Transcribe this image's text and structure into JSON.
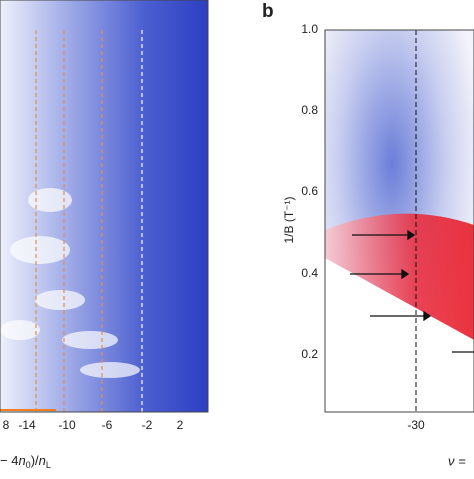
{
  "panel_a": {
    "xticks": [
      "8",
      "-14",
      "-10",
      "-6",
      "-2",
      "2"
    ],
    "xlabel": {
      "a": "− 4",
      "b": "n",
      "c": "0",
      "d": ")/",
      "e": "n",
      "f": "L"
    }
  },
  "panel_b": {
    "label": "b",
    "ylabel": "1/B (T⁻¹)",
    "yticks": [
      "1.0",
      "0.8",
      "0.6",
      "0.4",
      "0.2"
    ],
    "xticks": [
      "-30"
    ],
    "xlabel": "ν ="
  }
}
